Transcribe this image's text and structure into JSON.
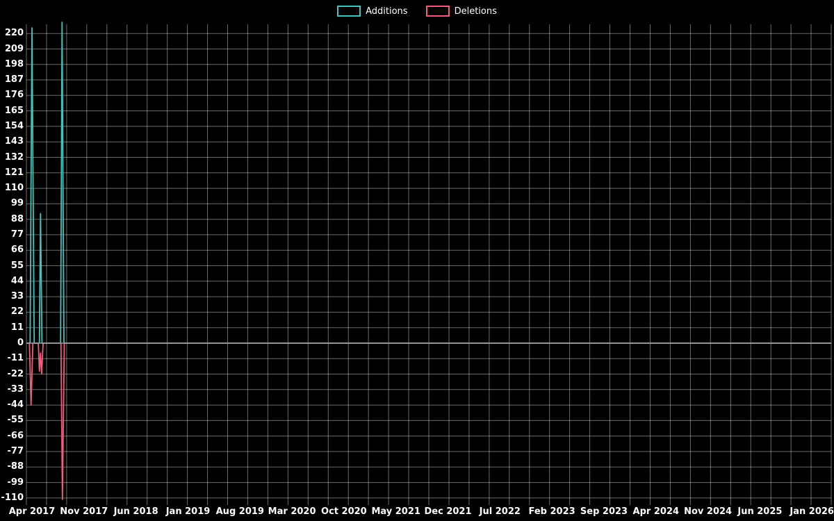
{
  "legend": [
    {
      "label": "Additions",
      "color": "#3fc5bc"
    },
    {
      "label": "Deletions",
      "color": "#f35c7e"
    }
  ],
  "chart_data": {
    "type": "line",
    "title": "",
    "xlabel": "",
    "ylabel": "",
    "x_unit": "months_since_apr_2017",
    "x_axis": {
      "tick_labels": [
        "Apr 2017",
        "Nov 2017",
        "Jun 2018",
        "Jan 2019",
        "Aug 2019",
        "Mar 2020",
        "Oct 2020",
        "May 2021",
        "Dec 2021",
        "Jul 2022",
        "Feb 2023",
        "Sep 2023",
        "Apr 2024",
        "Nov 2024",
        "Jun 2025",
        "Jan 2026"
      ],
      "tick_step_months": 7
    },
    "y_axis": {
      "ticks": [
        220,
        209,
        198,
        187,
        176,
        165,
        154,
        143,
        132,
        121,
        110,
        99,
        88,
        77,
        66,
        55,
        44,
        33,
        22,
        11,
        0,
        -11,
        -22,
        -33,
        -44,
        -55,
        -66,
        -77,
        -88,
        -99,
        -110
      ],
      "range": [
        -110,
        220
      ]
    },
    "grid": true,
    "legend_position": "top-center",
    "colors": {
      "background": "#000000",
      "grid": "rgba(255,255,255,0.42)",
      "zero_line": "#85a3a3",
      "additions": "#3fc5bc",
      "deletions": "#f35c7e",
      "text": "#ffffff"
    },
    "series": [
      {
        "name": "Additions",
        "color": "#3fc5bc",
        "points": [
          [
            -0.75,
            0
          ],
          [
            -0.25,
            0
          ],
          [
            0.0,
            224
          ],
          [
            0.3,
            0
          ],
          [
            1.0,
            0
          ],
          [
            1.15,
            92
          ],
          [
            1.35,
            0
          ],
          [
            3.85,
            0
          ],
          [
            4.05,
            228
          ],
          [
            4.3,
            0
          ],
          [
            107.6,
            0
          ]
        ]
      },
      {
        "name": "Deletions",
        "color": "#f35c7e",
        "points": [
          [
            -0.75,
            0
          ],
          [
            -0.35,
            0
          ],
          [
            -0.12,
            -44
          ],
          [
            0.12,
            0
          ],
          [
            0.85,
            0
          ],
          [
            1.0,
            -20
          ],
          [
            1.15,
            -7
          ],
          [
            1.3,
            -22
          ],
          [
            1.5,
            0
          ],
          [
            3.9,
            0
          ],
          [
            4.1,
            -111
          ],
          [
            4.35,
            0
          ],
          [
            107.6,
            0
          ]
        ]
      }
    ]
  }
}
